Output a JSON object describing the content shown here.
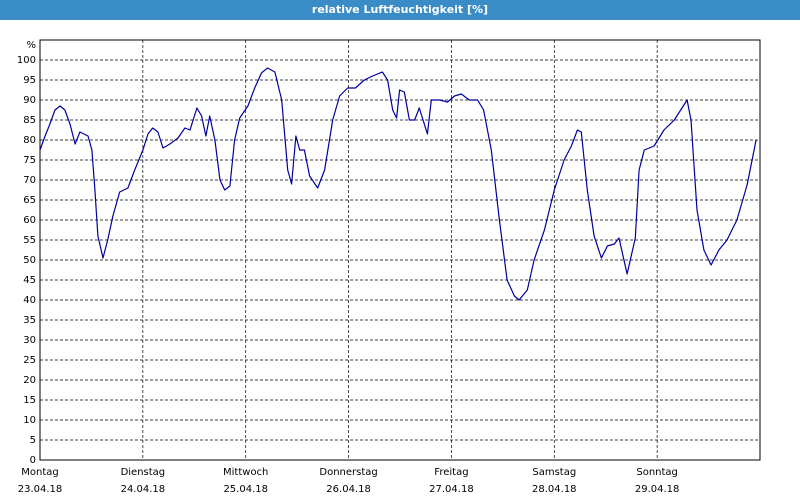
{
  "chart_data": {
    "type": "line",
    "title": "relative Luftfeuchtigkeit [%]",
    "y_label": "%",
    "xlim": [
      0,
      168
    ],
    "ylim": [
      0,
      105
    ],
    "yticks": [
      0,
      5,
      10,
      15,
      20,
      25,
      30,
      35,
      40,
      45,
      50,
      55,
      60,
      65,
      70,
      75,
      80,
      85,
      90,
      95,
      100
    ],
    "xticks": [
      {
        "value": 0,
        "label": "Montag",
        "sublabel": "23.04.18"
      },
      {
        "value": 24,
        "label": "Dienstag",
        "sublabel": "24.04.18"
      },
      {
        "value": 48,
        "label": "Mittwoch",
        "sublabel": "25.04.18"
      },
      {
        "value": 72,
        "label": "Donnerstag",
        "sublabel": "26.04.18"
      },
      {
        "value": 96,
        "label": "Freitag",
        "sublabel": "27.04.18"
      },
      {
        "value": 120,
        "label": "Samstag",
        "sublabel": "28.04.18"
      },
      {
        "value": 144,
        "label": "Sonntag",
        "sublabel": "29.04.18"
      }
    ],
    "grid": true,
    "series": [
      {
        "color": "#0000a0",
        "x": [
          0,
          1.2,
          2.3,
          3.5,
          4.7,
          5.8,
          7.0,
          8.2,
          9.3,
          11.2,
          12.1,
          12.8,
          13.5,
          14.7,
          15.8,
          17.0,
          18.6,
          20.5,
          22.1,
          24.0,
          25.2,
          26.3,
          27.5,
          28.7,
          30.3,
          32.2,
          33.8,
          35.0,
          36.6,
          37.7,
          38.7,
          39.6,
          40.8,
          42.0,
          43.1,
          44.3,
          45.4,
          46.6,
          48.5,
          50.1,
          51.7,
          53.1,
          54.8,
          56.4,
          57.8,
          58.7,
          59.7,
          60.6,
          61.7,
          62.9,
          64.8,
          66.4,
          68.3,
          69.9,
          71.8,
          73.6,
          75.7,
          77.6,
          79.9,
          81.1,
          82.3,
          83.2,
          83.9,
          85.0,
          86.2,
          87.4,
          88.5,
          90.4,
          91.3,
          93.2,
          95.1,
          96.7,
          98.3,
          100.2,
          102.1,
          103.5,
          105.3,
          107.2,
          109.0,
          110.7,
          111.8,
          113.7,
          115.3,
          117.7,
          120.0,
          122.3,
          124.0,
          125.4,
          126.3,
          127.7,
          129.3,
          131.0,
          132.4,
          134.0,
          135.1,
          137.0,
          138.9,
          139.8,
          141.0,
          143.3,
          145.6,
          148.0,
          151.0,
          151.9,
          153.3,
          154.9,
          156.6,
          158.4,
          160.3,
          162.6,
          165.0,
          167.1
        ],
        "values": [
          77.5,
          81,
          84,
          87.5,
          88.5,
          87.5,
          84,
          79,
          82,
          81,
          77.5,
          67.5,
          56,
          50.5,
          55,
          61,
          67,
          68,
          72.5,
          77.5,
          81.5,
          83,
          82,
          78,
          79,
          80.5,
          83,
          82.5,
          88,
          86,
          81,
          86,
          80,
          70,
          67.5,
          68.5,
          80,
          85.5,
          88.5,
          93,
          96.8,
          98,
          97,
          90,
          72.5,
          69,
          81,
          77.5,
          77.5,
          71,
          68,
          72.5,
          85,
          91,
          93,
          93,
          95,
          96,
          97,
          95,
          87.5,
          85.5,
          92.5,
          92,
          85,
          85,
          88,
          81.5,
          90,
          90,
          89.5,
          91,
          91.5,
          90,
          90,
          87.5,
          77.5,
          60,
          45,
          41,
          40,
          42.5,
          50,
          57.5,
          67.5,
          75,
          78.5,
          82.5,
          82,
          67.5,
          56,
          50.5,
          53.5,
          54,
          55.5,
          46.5,
          55.5,
          72.5,
          77.5,
          78.5,
          82.5,
          85,
          90,
          85,
          62.5,
          52.5,
          48.75,
          52.5,
          55,
          60,
          68.75,
          80
        ]
      }
    ]
  }
}
